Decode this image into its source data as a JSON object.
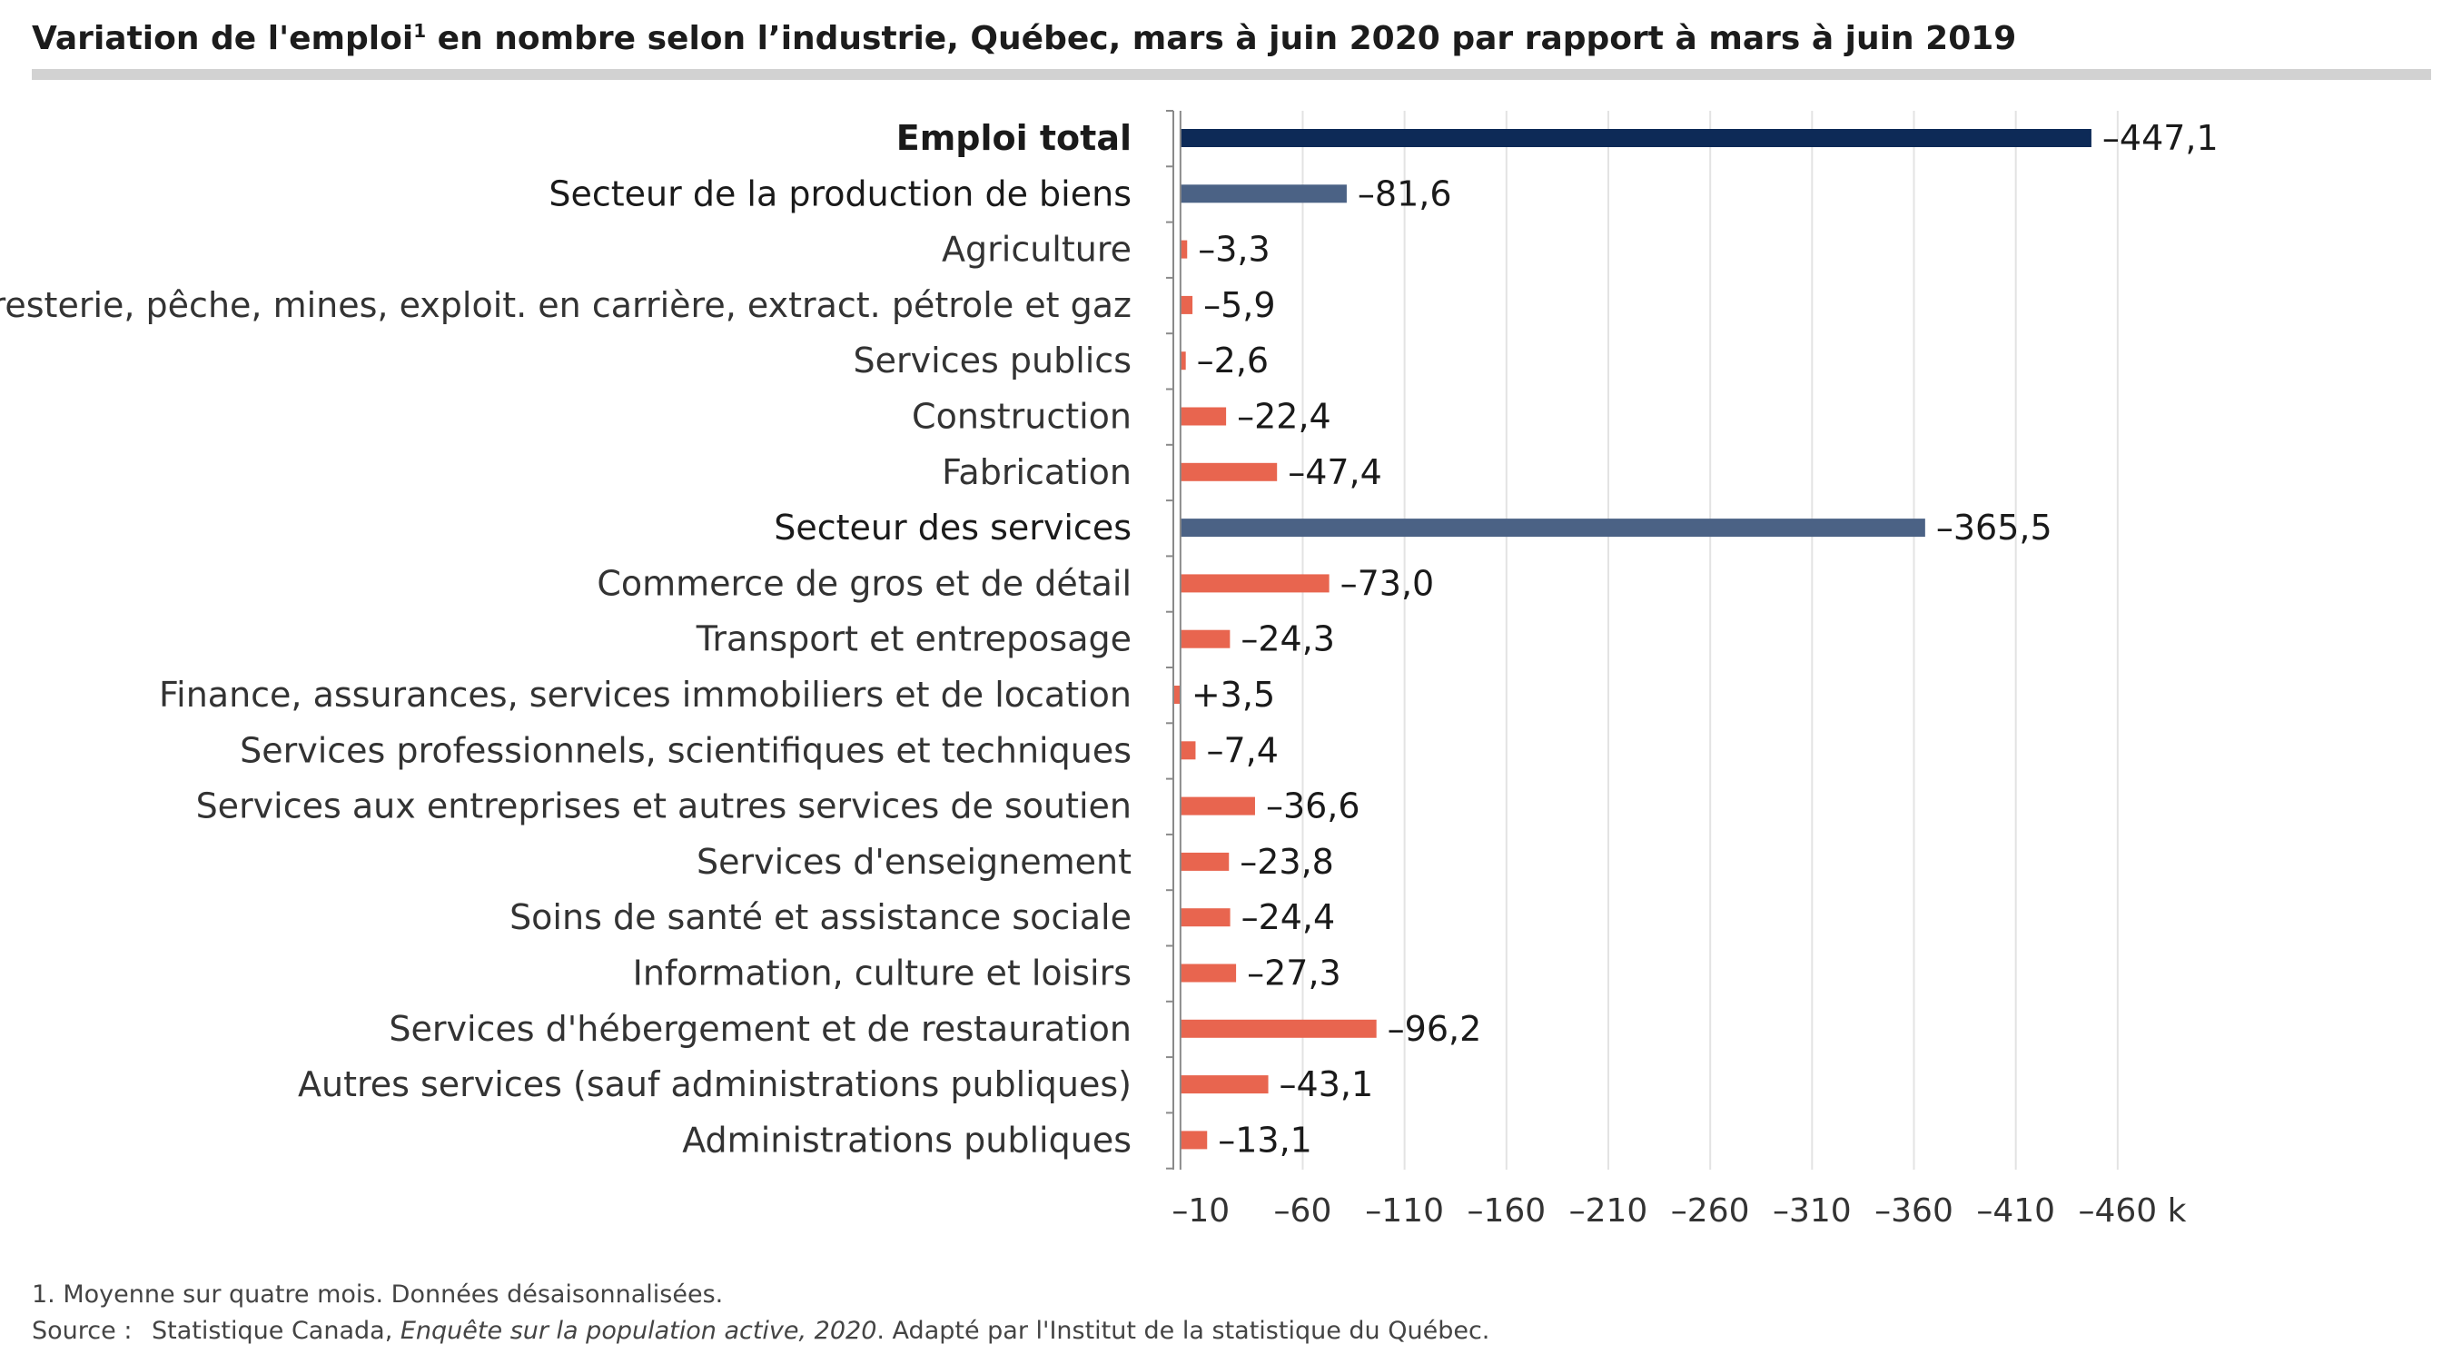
{
  "title": {
    "text": "Variation de l'emploi",
    "footnote_mark": "1",
    "rest": " en nombre selon l’industrie, Québec, mars à juin 2020 par rapport à mars à juin 2019"
  },
  "footnote": "1.  Moyenne sur quatre mois. Données désaisonnalisées.",
  "source": {
    "label": "Source :",
    "org": "Statistique Canada, ",
    "publication": "Enquête sur la population active, 2020",
    "suffix": ". Adapté par l'Institut de la statistique du Québec."
  },
  "colors": {
    "total": "#0d2a57",
    "sector": "#4b6285",
    "industry": "#e8654f",
    "grid": "#e3e3e3",
    "axis": "#8a8a8a",
    "text": "#1a1a1a",
    "tick_text": "#333333"
  },
  "chart_data": {
    "type": "bar",
    "orientation": "horizontal",
    "unit": "k",
    "x_tick_values": [
      -10,
      -60,
      -110,
      -160,
      -210,
      -260,
      -310,
      -360,
      -410,
      -460
    ],
    "x_tick_labels": [
      "–10",
      "–60",
      "–110",
      "–160",
      "–210",
      "–260",
      "–310",
      "–360",
      "–410",
      "–460"
    ],
    "xlim": [
      3.5,
      -460
    ],
    "grid": true,
    "categories": [
      "Emploi total",
      "Secteur de la production de biens",
      "Agriculture",
      "Foresterie, pêche, mines, exploit. en carrière, extract. pétrole et gaz",
      "Services publics",
      "Construction",
      "Fabrication",
      "Secteur des services",
      "Commerce de gros et de détail",
      "Transport et entreposage",
      "Finance, assurances, services immobiliers et de location",
      "Services professionnels, scientifiques et techniques",
      "Services aux entreprises et autres services de soutien",
      "Services d'enseignement",
      "Soins de santé et assistance sociale",
      "Information, culture et loisirs",
      "Services d'hébergement et de restauration",
      "Autres services (sauf administrations publiques)",
      "Administrations publiques"
    ],
    "values": [
      -447.1,
      -81.6,
      -3.3,
      -5.9,
      -2.6,
      -22.4,
      -47.4,
      -365.5,
      -73.0,
      -24.3,
      3.5,
      -7.4,
      -36.6,
      -23.8,
      -24.4,
      -27.3,
      -96.2,
      -43.1,
      -13.1
    ],
    "value_labels": [
      "–447,1",
      "–81,6",
      "–3,3",
      "–5,9",
      "–2,6",
      "–22,4",
      "–47,4",
      "–365,5",
      "–73,0",
      "–24,3",
      "+3,5",
      "–7,4",
      "–36,6",
      "–23,8",
      "–24,4",
      "–27,3",
      "–96,2",
      "–43,1",
      "–13,1"
    ],
    "levels": [
      "total",
      "sector",
      "industry",
      "industry",
      "industry",
      "industry",
      "industry",
      "sector",
      "industry",
      "industry",
      "industry",
      "industry",
      "industry",
      "industry",
      "industry",
      "industry",
      "industry",
      "industry",
      "industry"
    ]
  }
}
